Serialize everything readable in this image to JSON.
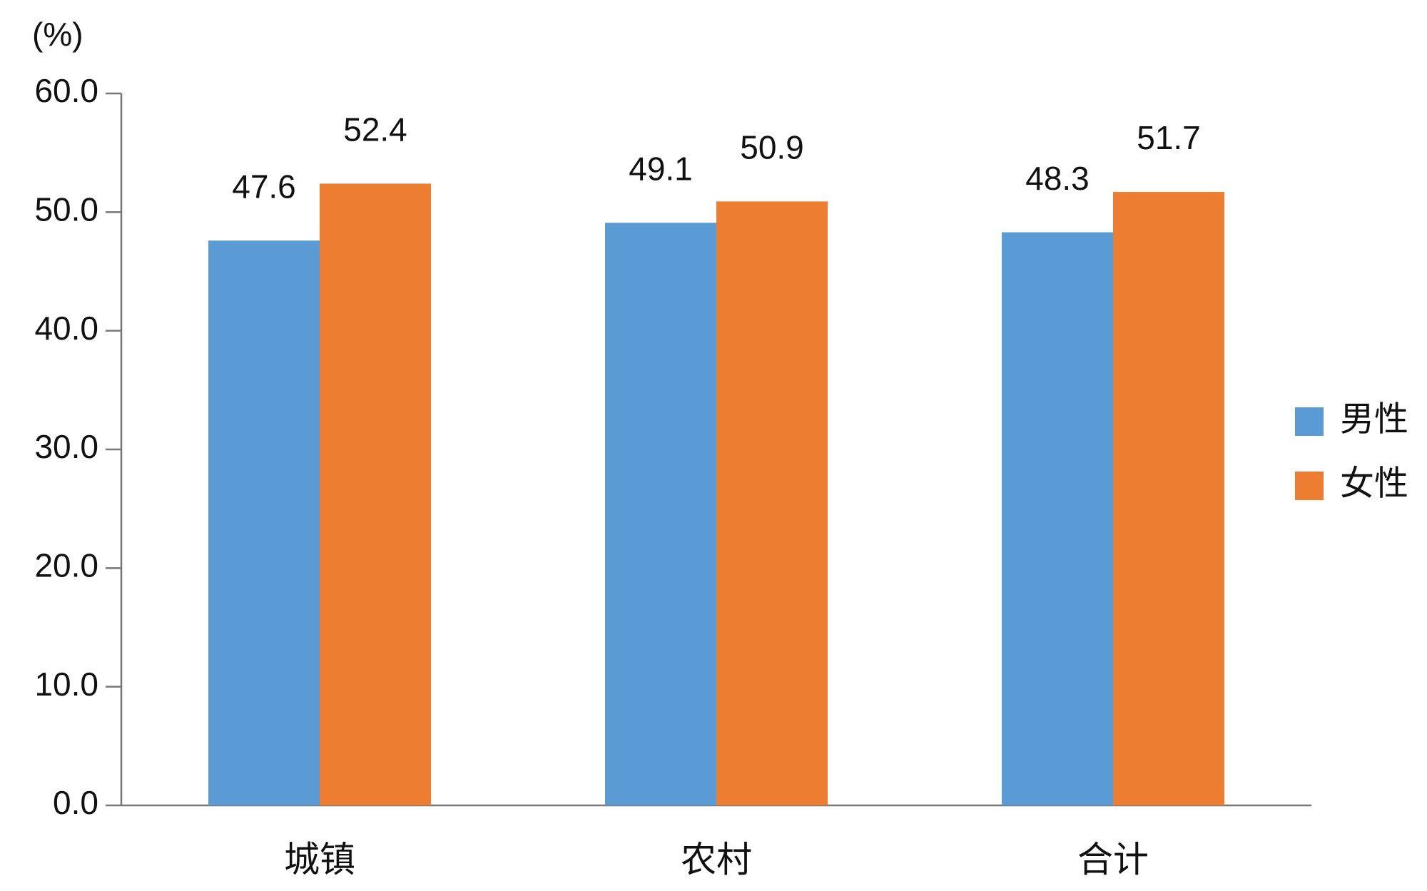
{
  "chart_data": {
    "type": "bar",
    "y_label": "(%)",
    "categories": [
      "城镇",
      "农村",
      "合计"
    ],
    "series": [
      {
        "name": "男性",
        "color": "#5b9bd5",
        "values": [
          47.6,
          49.1,
          48.3
        ]
      },
      {
        "name": "女性",
        "color": "#ed7d31",
        "values": [
          52.4,
          50.9,
          51.7
        ]
      }
    ],
    "ylim": [
      0,
      60
    ],
    "yticks": [
      {
        "value": 0,
        "label": "0.0"
      },
      {
        "value": 10,
        "label": "10.0"
      },
      {
        "value": 20,
        "label": "20.0"
      },
      {
        "value": 30,
        "label": "30.0"
      },
      {
        "value": 40,
        "label": "40.0"
      },
      {
        "value": 50,
        "label": "50.0"
      },
      {
        "value": 60,
        "label": "60.0"
      }
    ],
    "grid": false,
    "legend": "right"
  }
}
